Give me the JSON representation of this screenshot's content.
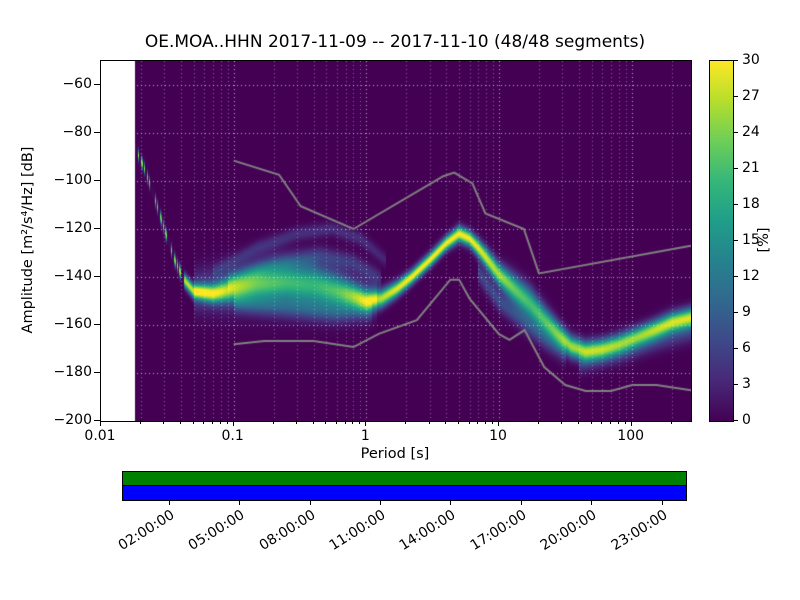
{
  "figure": {
    "title": "OE.MOA..HHN   2017-11-09 -- 2017-11-10  (48/48 segments)",
    "xlabel": "Period [s]",
    "ylabel": "Amplitude [m²/s⁴/Hz] [dB]",
    "colorbar_label": "[%]"
  },
  "chart_data": {
    "type": "heatmap",
    "title": "OE.MOA..HHN 2017-11-09 -- 2017-11-10 (48/48 segments)",
    "xlabel": "Period [s]",
    "ylabel": "Amplitude [m²/s⁴/Hz] [dB]",
    "x_scale": "log",
    "xlim": [
      0.01,
      280
    ],
    "ylim": [
      -200,
      -50
    ],
    "x_ticks": [
      {
        "v": 0.01,
        "label": "0.01"
      },
      {
        "v": 0.1,
        "label": "0.1"
      },
      {
        "v": 1,
        "label": "1"
      },
      {
        "v": 10,
        "label": "10"
      },
      {
        "v": 100,
        "label": "100"
      }
    ],
    "y_ticks": [
      {
        "v": -200,
        "label": "−200"
      },
      {
        "v": -180,
        "label": "−180"
      },
      {
        "v": -160,
        "label": "−160"
      },
      {
        "v": -140,
        "label": "−140"
      },
      {
        "v": -120,
        "label": "−120"
      },
      {
        "v": -100,
        "label": "−100"
      },
      {
        "v": -80,
        "label": "−80"
      },
      {
        "v": -60,
        "label": "−60"
      }
    ],
    "grid_color": "#ffffff",
    "no_data_below_period": 0.018,
    "sparse_below_period": 0.042,
    "colorbar": {
      "label": "[%]",
      "min": 0,
      "max": 30,
      "ticks": [
        0,
        3,
        6,
        9,
        12,
        15,
        18,
        21,
        24,
        27,
        30
      ],
      "colormap": "viridis",
      "stops": [
        [
          0.0,
          "#440154"
        ],
        [
          0.111,
          "#482878"
        ],
        [
          0.222,
          "#3e4989"
        ],
        [
          0.333,
          "#31688e"
        ],
        [
          0.444,
          "#26828e"
        ],
        [
          0.556,
          "#1f9e89"
        ],
        [
          0.667,
          "#35b779"
        ],
        [
          0.778,
          "#6ece58"
        ],
        [
          0.889,
          "#b5de2b"
        ],
        [
          1.0,
          "#fde725"
        ]
      ]
    },
    "psd_mode": [
      [
        0.018,
        -86,
        26,
        1.5
      ],
      [
        0.021,
        -94,
        26,
        1.5
      ],
      [
        0.025,
        -106,
        25,
        1.5
      ],
      [
        0.03,
        -120,
        25,
        1.5
      ],
      [
        0.036,
        -133,
        26,
        1.5
      ],
      [
        0.042,
        -141,
        27,
        1.8
      ],
      [
        0.05,
        -146,
        28,
        2.0
      ],
      [
        0.07,
        -147,
        26,
        2.5
      ],
      [
        0.1,
        -145,
        20,
        3.5
      ],
      [
        0.15,
        -143,
        17,
        4.5
      ],
      [
        0.25,
        -142,
        15,
        5.0
      ],
      [
        0.4,
        -143,
        14,
        5.5
      ],
      [
        0.6,
        -146,
        16,
        4.5
      ],
      [
        0.8,
        -148,
        20,
        3.5
      ],
      [
        1.0,
        -150,
        24,
        3.0
      ],
      [
        1.3,
        -149,
        27,
        2.5
      ],
      [
        1.7,
        -145,
        29,
        2.2
      ],
      [
        2.2,
        -140,
        30,
        2.0
      ],
      [
        3.0,
        -133,
        30,
        2.0
      ],
      [
        4.0,
        -126,
        30,
        2.0
      ],
      [
        5.0,
        -122,
        30,
        2.2
      ],
      [
        6.0,
        -124,
        30,
        2.2
      ],
      [
        7.0,
        -128,
        29,
        2.5
      ],
      [
        8.0,
        -132,
        28,
        2.8
      ],
      [
        10.0,
        -139,
        26,
        3.2
      ],
      [
        13.0,
        -145,
        23,
        4.0
      ],
      [
        17.0,
        -151,
        21,
        4.5
      ],
      [
        22.0,
        -158,
        22,
        4.0
      ],
      [
        28.0,
        -164,
        24,
        3.5
      ],
      [
        35.0,
        -169,
        26,
        3.0
      ],
      [
        45.0,
        -171,
        26,
        2.8
      ],
      [
        60.0,
        -170,
        25,
        2.8
      ],
      [
        80.0,
        -168,
        24,
        2.8
      ],
      [
        110.0,
        -165,
        24,
        2.8
      ],
      [
        150.0,
        -162,
        26,
        2.8
      ],
      [
        200.0,
        -159,
        28,
        2.8
      ],
      [
        280.0,
        -157,
        28,
        2.8
      ]
    ],
    "secondary_branches": [
      {
        "points": [
          [
            0.07,
            -138,
            3,
            2
          ],
          [
            0.15,
            -128,
            4,
            2
          ],
          [
            0.3,
            -122,
            4,
            2
          ],
          [
            0.55,
            -120,
            4,
            2
          ],
          [
            0.9,
            -124,
            4,
            2
          ],
          [
            1.4,
            -133,
            3,
            2
          ]
        ]
      },
      {
        "points": [
          [
            0.09,
            -142,
            5,
            2.5
          ],
          [
            0.2,
            -135,
            5,
            2.5
          ],
          [
            0.45,
            -131,
            5,
            2.5
          ],
          [
            0.8,
            -134,
            5,
            2.5
          ],
          [
            1.3,
            -141,
            4,
            2.5
          ]
        ]
      },
      {
        "points": [
          [
            0.1,
            -151,
            6,
            2.5
          ],
          [
            0.3,
            -153,
            6,
            3
          ],
          [
            0.6,
            -155,
            6,
            3
          ],
          [
            1.1,
            -154,
            5,
            3
          ]
        ]
      },
      {
        "points": [
          [
            0.05,
            -146,
            6,
            6
          ],
          [
            0.2,
            -143,
            6,
            8
          ],
          [
            0.6,
            -146,
            6,
            7
          ],
          [
            1.2,
            -149,
            5,
            5
          ]
        ]
      },
      {
        "points": [
          [
            7,
            -138,
            6,
            3
          ],
          [
            10,
            -150,
            7,
            3
          ],
          [
            15,
            -158,
            7,
            3
          ],
          [
            22,
            -166,
            6,
            3
          ],
          [
            32,
            -172,
            5,
            3
          ]
        ]
      },
      {
        "points": [
          [
            40,
            -176,
            5,
            3
          ],
          [
            80,
            -172,
            5,
            3
          ],
          [
            150,
            -167,
            5,
            3
          ],
          [
            280,
            -163,
            5,
            3
          ]
        ]
      }
    ],
    "noise_models": {
      "color": "#808080",
      "high": [
        [
          0.1,
          -91.5
        ],
        [
          0.22,
          -97.4
        ],
        [
          0.32,
          -110.5
        ],
        [
          0.8,
          -120.0
        ],
        [
          3.8,
          -98.0
        ],
        [
          4.6,
          -96.5
        ],
        [
          6.3,
          -101.0
        ],
        [
          7.9,
          -113.5
        ],
        [
          15.4,
          -120.0
        ],
        [
          20.0,
          -138.5
        ],
        [
          280.0,
          -127.0
        ]
      ],
      "low": [
        [
          0.1,
          -168.0
        ],
        [
          0.17,
          -166.7
        ],
        [
          0.4,
          -166.7
        ],
        [
          0.8,
          -169.2
        ],
        [
          1.24,
          -163.7
        ],
        [
          2.4,
          -158.0
        ],
        [
          4.3,
          -141.1
        ],
        [
          5.0,
          -141.1
        ],
        [
          6.0,
          -149.0
        ],
        [
          10.0,
          -163.8
        ],
        [
          12.0,
          -166.2
        ],
        [
          15.6,
          -162.1
        ],
        [
          21.9,
          -177.5
        ],
        [
          31.6,
          -185.0
        ],
        [
          45.0,
          -187.5
        ],
        [
          70.0,
          -187.5
        ],
        [
          101.0,
          -185.0
        ],
        [
          154.0,
          -185.0
        ],
        [
          280.0,
          -187.2
        ]
      ]
    }
  },
  "timeline": {
    "colors": {
      "top": "#008000",
      "bottom": "#0000ff"
    },
    "span_hours": 24,
    "hours": [
      2,
      5,
      8,
      11,
      14,
      17,
      20,
      23
    ],
    "labels": [
      "02:00:00",
      "05:00:00",
      "08:00:00",
      "11:00:00",
      "14:00:00",
      "17:00:00",
      "20:00:00",
      "23:00:00"
    ]
  }
}
